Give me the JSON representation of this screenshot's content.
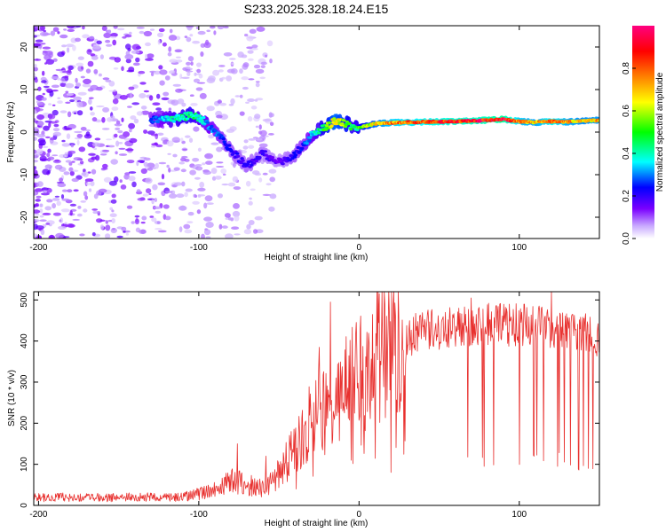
{
  "title": "S233.2025.328.18.24.E15",
  "chart_data": [
    {
      "type": "heatmap",
      "name": "spectrogram",
      "xlabel": "Height of straight line (km)",
      "ylabel": "Frequency (Hz)",
      "xlim": [
        -203,
        150
      ],
      "ylim": [
        -25,
        25
      ],
      "xticks": [
        -200,
        -100,
        0,
        100
      ],
      "yticks": [
        -20,
        -10,
        0,
        10,
        20
      ],
      "colorbar": {
        "label": "Normalized spectral amplitude",
        "range": [
          0.0,
          1.0
        ],
        "ticks": [
          0.0,
          0.2,
          0.4,
          0.6,
          0.8
        ],
        "tick_labels": [
          "0.0",
          "0.2",
          "0.4",
          "0.6",
          "0.8"
        ],
        "colormap": [
          "#ffffff",
          "#c8a8ff",
          "#7a00ff",
          "#0000ff",
          "#00ffff",
          "#00ff00",
          "#ffff00",
          "#ff8000",
          "#ff0000",
          "#ff0080"
        ]
      },
      "ridge": {
        "x": [
          -130,
          -115,
          -105,
          -98,
          -92,
          -85,
          -78,
          -70,
          -60,
          -50,
          -42,
          -35,
          -28,
          -22,
          -15,
          -8,
          -3,
          0,
          10,
          20,
          40,
          60,
          80,
          90,
          100,
          110,
          120,
          130,
          140,
          150
        ],
        "freq": [
          3,
          3,
          4,
          3,
          1,
          -2,
          -5,
          -8,
          -5,
          -7,
          -6,
          -3,
          0,
          1,
          2.5,
          2,
          1,
          1,
          2,
          2.2,
          2.4,
          2.5,
          2.8,
          3,
          2.5,
          2.3,
          2.5,
          2.4,
          2.6,
          2.8
        ],
        "amplitude": [
          0.25,
          0.4,
          0.45,
          0.35,
          0.3,
          0.25,
          0.2,
          0.2,
          0.18,
          0.15,
          0.2,
          0.25,
          0.35,
          0.5,
          0.65,
          0.55,
          0.4,
          0.5,
          0.65,
          0.75,
          0.8,
          0.85,
          0.88,
          0.92,
          0.75,
          0.7,
          0.8,
          0.72,
          0.68,
          0.7
        ]
      }
    },
    {
      "type": "line",
      "name": "snr",
      "xlabel": "Height of straight line (km)",
      "ylabel": "SNR (10 * v/v)",
      "xlim": [
        -203,
        150
      ],
      "ylim": [
        0,
        520
      ],
      "xticks": [
        -200,
        -100,
        0,
        100
      ],
      "yticks": [
        0,
        100,
        200,
        300,
        400,
        500
      ],
      "color": "#e8302e",
      "envelope": {
        "x": [
          -203,
          -150,
          -110,
          -100,
          -90,
          -80,
          -70,
          -60,
          -50,
          -40,
          -35,
          -30,
          -25,
          -20,
          -15,
          -10,
          -5,
          0,
          5,
          10,
          15,
          20,
          25,
          30,
          40,
          50,
          60,
          80,
          100,
          120,
          140,
          150
        ],
        "y": [
          20,
          20,
          20,
          28,
          38,
          60,
          50,
          40,
          85,
          130,
          170,
          210,
          230,
          250,
          265,
          285,
          300,
          315,
          335,
          355,
          370,
          390,
          400,
          410,
          425,
          430,
          440,
          440,
          440,
          435,
          420,
          400
        ]
      },
      "spikes": [
        {
          "x": -76,
          "y": 150
        },
        {
          "x": -58,
          "y": 120
        },
        {
          "x": -25,
          "y": 385
        },
        {
          "x": -18,
          "y": 495
        },
        {
          "x": 70,
          "y": 505
        },
        {
          "x": 78,
          "y": 95
        },
        {
          "x": 120,
          "y": 520
        },
        {
          "x": 124,
          "y": 95
        }
      ],
      "dropouts_x": [
        -5,
        10,
        20,
        28,
        68,
        77,
        84,
        100,
        109,
        111,
        115,
        125,
        128,
        132,
        137,
        140,
        143,
        146
      ]
    }
  ]
}
